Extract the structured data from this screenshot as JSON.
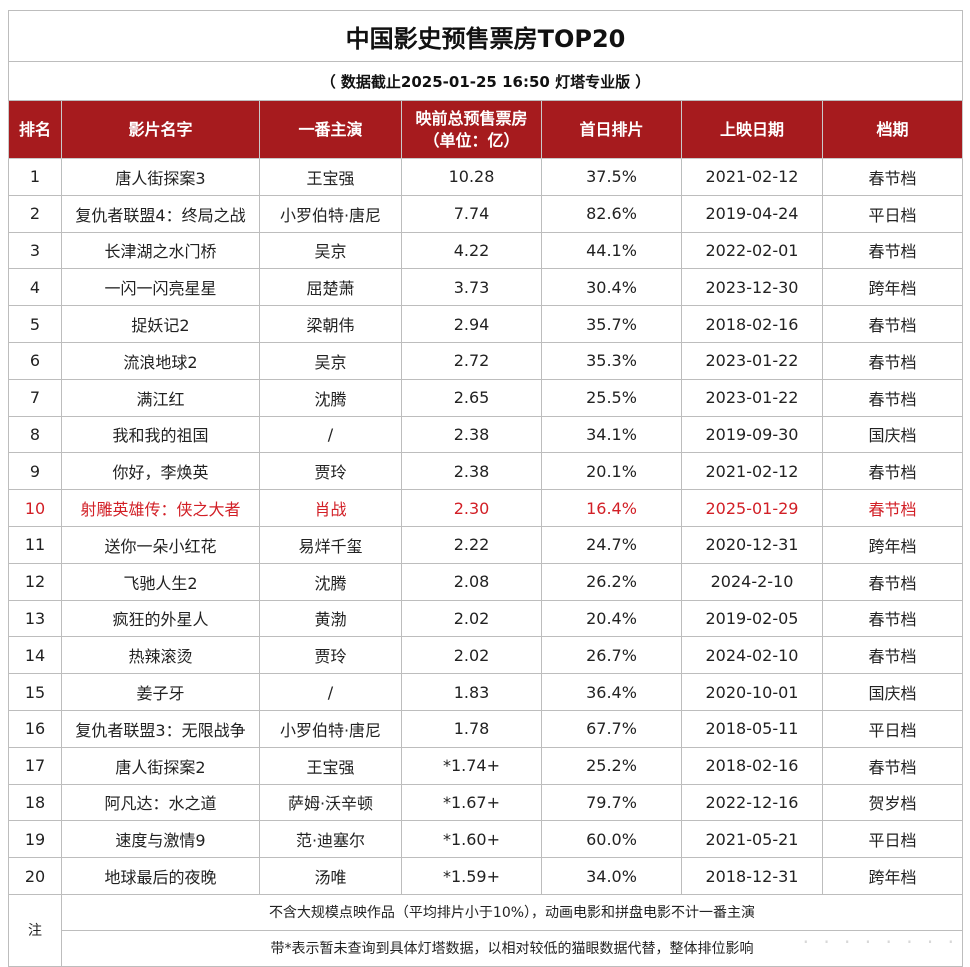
{
  "title": "中国影史预售票房TOP20",
  "subtitle": "（ 数据截止2025-01-25 16:50 灯塔专业版 ）",
  "headers": {
    "rank": "排名",
    "film": "影片名字",
    "lead": "一番主演",
    "presale_line1": "映前总预售票房",
    "presale_line2": "（单位：亿）",
    "first_day": "首日排片",
    "release": "上映日期",
    "period": "档期"
  },
  "rows": [
    {
      "rank": "1",
      "film": "唐人街探案3",
      "lead": "王宝强",
      "presale": "10.28",
      "share": "37.5%",
      "date": "2021-02-12",
      "period": "春节档"
    },
    {
      "rank": "2",
      "film": "复仇者联盟4：终局之战",
      "lead": "小罗伯特·唐尼",
      "presale": "7.74",
      "share": "82.6%",
      "date": "2019-04-24",
      "period": "平日档"
    },
    {
      "rank": "3",
      "film": "长津湖之水门桥",
      "lead": "吴京",
      "presale": "4.22",
      "share": "44.1%",
      "date": "2022-02-01",
      "period": "春节档"
    },
    {
      "rank": "4",
      "film": "一闪一闪亮星星",
      "lead": "屈楚萧",
      "presale": "3.73",
      "share": "30.4%",
      "date": "2023-12-30",
      "period": "跨年档"
    },
    {
      "rank": "5",
      "film": "捉妖记2",
      "lead": "梁朝伟",
      "presale": "2.94",
      "share": "35.7%",
      "date": "2018-02-16",
      "period": "春节档"
    },
    {
      "rank": "6",
      "film": "流浪地球2",
      "lead": "吴京",
      "presale": "2.72",
      "share": "35.3%",
      "date": "2023-01-22",
      "period": "春节档"
    },
    {
      "rank": "7",
      "film": "满江红",
      "lead": "沈腾",
      "presale": "2.65",
      "share": "25.5%",
      "date": "2023-01-22",
      "period": "春节档"
    },
    {
      "rank": "8",
      "film": "我和我的祖国",
      "lead": "/",
      "presale": "2.38",
      "share": "34.1%",
      "date": "2019-09-30",
      "period": "国庆档"
    },
    {
      "rank": "9",
      "film": "你好，李焕英",
      "lead": "贾玲",
      "presale": "2.38",
      "share": "20.1%",
      "date": "2021-02-12",
      "period": "春节档"
    },
    {
      "rank": "10",
      "film": "射雕英雄传：侠之大者",
      "lead": "肖战",
      "presale": "2.30",
      "share": "16.4%",
      "date": "2025-01-29",
      "period": "春节档",
      "highlight": true
    },
    {
      "rank": "11",
      "film": "送你一朵小红花",
      "lead": "易烊千玺",
      "presale": "2.22",
      "share": "24.7%",
      "date": "2020-12-31",
      "period": "跨年档"
    },
    {
      "rank": "12",
      "film": "飞驰人生2",
      "lead": "沈腾",
      "presale": "2.08",
      "share": "26.2%",
      "date": "2024-2-10",
      "period": "春节档"
    },
    {
      "rank": "13",
      "film": "疯狂的外星人",
      "lead": "黄渤",
      "presale": "2.02",
      "share": "20.4%",
      "date": "2019-02-05",
      "period": "春节档"
    },
    {
      "rank": "14",
      "film": "热辣滚烫",
      "lead": "贾玲",
      "presale": "2.02",
      "share": "26.7%",
      "date": "2024-02-10",
      "period": "春节档"
    },
    {
      "rank": "15",
      "film": "姜子牙",
      "lead": "/",
      "presale": "1.83",
      "share": "36.4%",
      "date": "2020-10-01",
      "period": "国庆档"
    },
    {
      "rank": "16",
      "film": "复仇者联盟3：无限战争",
      "lead": "小罗伯特·唐尼",
      "presale": "1.78",
      "share": "67.7%",
      "date": "2018-05-11",
      "period": "平日档"
    },
    {
      "rank": "17",
      "film": "唐人街探案2",
      "lead": "王宝强",
      "presale": "*1.74+",
      "share": "25.2%",
      "date": "2018-02-16",
      "period": "春节档"
    },
    {
      "rank": "18",
      "film": "阿凡达：水之道",
      "lead": "萨姆·沃辛顿",
      "presale": "*1.67+",
      "share": "79.7%",
      "date": "2022-12-16",
      "period": "贺岁档"
    },
    {
      "rank": "19",
      "film": "速度与激情9",
      "lead": "范·迪塞尔",
      "presale": "*1.60+",
      "share": "60.0%",
      "date": "2021-05-21",
      "period": "平日档"
    },
    {
      "rank": "20",
      "film": "地球最后的夜晚",
      "lead": "汤唯",
      "presale": "*1.59+",
      "share": "34.0%",
      "date": "2018-12-31",
      "period": "跨年档"
    }
  ],
  "notes": {
    "label": "注",
    "line1": "不含大规模点映作品（平均排片小于10%），动画电影和拼盘电影不计一番主演",
    "line2": "带*表示暂未查询到具体灯塔数据，以相对较低的猫眼数据代替，整体排位影响"
  },
  "colors": {
    "header_bg": "#a61b1e",
    "header_text": "#ffffff",
    "highlight_text": "#d21f26",
    "border": "#bdbdbd"
  }
}
